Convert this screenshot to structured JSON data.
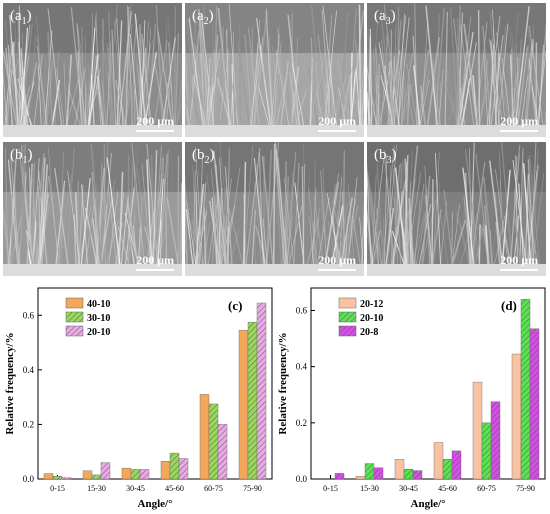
{
  "panels": [
    {
      "letter": "a",
      "sub": "1",
      "scale": "200 μm",
      "tone": "#8c8c8c"
    },
    {
      "letter": "a",
      "sub": "2",
      "scale": "200 μm",
      "tone": "#a6a6a6"
    },
    {
      "letter": "a",
      "sub": "3",
      "scale": "200 μm",
      "tone": "#8f8f8f"
    },
    {
      "letter": "b",
      "sub": "1",
      "scale": "200 μm",
      "tone": "#9a9a9a"
    },
    {
      "letter": "b",
      "sub": "2",
      "scale": "200 μm",
      "tone": "#8a8a8a"
    },
    {
      "letter": "b",
      "sub": "3",
      "scale": "200 μm",
      "tone": "#7f7f7f"
    }
  ],
  "chart_data": [
    {
      "type": "bar",
      "panel_label": "(c)",
      "xlabel": "Angle/°",
      "ylabel": "Relative frequency/%",
      "ylim": [
        0,
        0.7
      ],
      "yticks": [
        "0.0",
        "0.2",
        "0.4",
        "0.6"
      ],
      "legend_position": "top-left",
      "categories": [
        "0-15",
        "15-30",
        "30-45",
        "45-60",
        "60-75",
        "75-90"
      ],
      "series": [
        {
          "name": "40-10",
          "color": "#f4a65b",
          "pattern": "solid",
          "values": [
            0.02,
            0.03,
            0.04,
            0.065,
            0.31,
            0.545
          ]
        },
        {
          "name": "30-10",
          "color": "#9ad85c",
          "pattern": "hatch",
          "values": [
            0.01,
            0.015,
            0.035,
            0.095,
            0.275,
            0.575
          ]
        },
        {
          "name": "20-10",
          "color": "#e9a9e4",
          "pattern": "hatch",
          "values": [
            0.005,
            0.06,
            0.035,
            0.075,
            0.2,
            0.645
          ]
        }
      ]
    },
    {
      "type": "bar",
      "panel_label": "(d)",
      "xlabel": "Angle/°",
      "ylabel": "Relative frequency/%",
      "ylim": [
        0,
        0.68
      ],
      "yticks": [
        "0.0",
        "0.2",
        "0.4",
        "0.6"
      ],
      "legend_position": "top-left",
      "categories": [
        "0-15",
        "15-30",
        "30-45",
        "45-60",
        "60-75",
        "75-90"
      ],
      "series": [
        {
          "name": "20-12",
          "color": "#f9c3a2",
          "pattern": "solid",
          "values": [
            0.0,
            0.01,
            0.07,
            0.13,
            0.345,
            0.445
          ]
        },
        {
          "name": "20-10",
          "color": "#58e34f",
          "pattern": "hatch",
          "values": [
            0.0,
            0.055,
            0.035,
            0.07,
            0.2,
            0.64
          ]
        },
        {
          "name": "20-8",
          "color": "#d54ee6",
          "pattern": "hatch",
          "values": [
            0.02,
            0.04,
            0.03,
            0.1,
            0.275,
            0.535
          ]
        }
      ]
    }
  ]
}
